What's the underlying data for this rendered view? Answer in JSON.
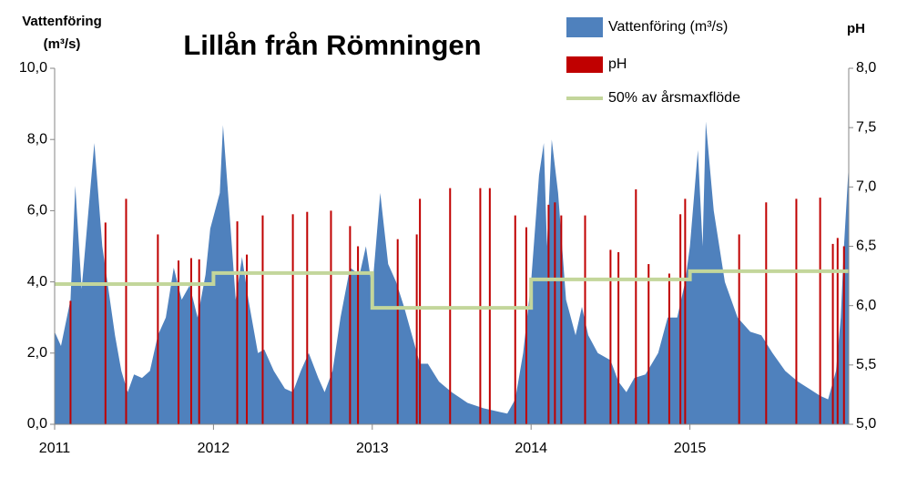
{
  "chart_data": {
    "type": "combo",
    "title": "Lillån från Römningen",
    "ylabel": [
      "Vattenföring",
      "(m³/s)"
    ],
    "y2label": "pH",
    "xlim": [
      2011,
      2016
    ],
    "xticks": [
      2011,
      2012,
      2013,
      2014,
      2015
    ],
    "ylim": [
      0,
      10
    ],
    "yticks": [
      {
        "value": 0,
        "label": "0,0"
      },
      {
        "value": 2,
        "label": "2,0"
      },
      {
        "value": 4,
        "label": "4,0"
      },
      {
        "value": 6,
        "label": "6,0"
      },
      {
        "value": 8,
        "label": "8,0"
      },
      {
        "value": 10,
        "label": "10,0"
      }
    ],
    "y2lim": [
      5,
      8
    ],
    "y2ticks": [
      {
        "value": 5,
        "label": "5,0"
      },
      {
        "value": 5.5,
        "label": "5,5"
      },
      {
        "value": 6,
        "label": "6,0"
      },
      {
        "value": 6.5,
        "label": "6,5"
      },
      {
        "value": 7,
        "label": "7,0"
      },
      {
        "value": 7.5,
        "label": "7,5"
      },
      {
        "value": 8,
        "label": "8,0"
      }
    ],
    "series": [
      {
        "name": "Vattenföring (m³/s)",
        "type": "area",
        "color": "#4f81bd",
        "x": [
          2011.0,
          2011.04,
          2011.1,
          2011.13,
          2011.17,
          2011.25,
          2011.3,
          2011.38,
          2011.42,
          2011.46,
          2011.5,
          2011.55,
          2011.6,
          2011.65,
          2011.7,
          2011.75,
          2011.8,
          2011.85,
          2011.9,
          2011.95,
          2011.98,
          2012.04,
          2012.06,
          2012.1,
          2012.14,
          2012.18,
          2012.22,
          2012.28,
          2012.32,
          2012.38,
          2012.45,
          2012.5,
          2012.55,
          2012.6,
          2012.66,
          2012.7,
          2012.75,
          2012.8,
          2012.86,
          2012.92,
          2012.96,
          2013.0,
          2013.05,
          2013.1,
          2013.15,
          2013.2,
          2013.25,
          2013.3,
          2013.35,
          2013.42,
          2013.5,
          2013.6,
          2013.7,
          2013.8,
          2013.85,
          2013.9,
          2013.95,
          2014.0,
          2014.05,
          2014.08,
          2014.1,
          2014.13,
          2014.17,
          2014.22,
          2014.28,
          2014.32,
          2014.36,
          2014.42,
          2014.5,
          2014.55,
          2014.6,
          2014.65,
          2014.72,
          2014.8,
          2014.86,
          2014.92,
          2014.97,
          2015.0,
          2015.05,
          2015.08,
          2015.1,
          2015.15,
          2015.22,
          2015.3,
          2015.38,
          2015.45,
          2015.52,
          2015.6,
          2015.68,
          2015.75,
          2015.82,
          2015.87,
          2015.92,
          2015.95,
          2015.97,
          2016.0
        ],
        "values": [
          2.6,
          2.2,
          3.5,
          6.7,
          3.8,
          7.9,
          5.0,
          2.5,
          1.5,
          0.9,
          1.4,
          1.3,
          1.5,
          2.5,
          3.0,
          4.4,
          3.5,
          3.9,
          3.0,
          4.2,
          5.5,
          6.5,
          8.4,
          6.0,
          3.5,
          4.7,
          3.5,
          2.0,
          2.1,
          1.5,
          1.0,
          0.9,
          1.5,
          2.0,
          1.3,
          0.9,
          1.5,
          3.0,
          4.4,
          4.2,
          5.0,
          3.8,
          6.5,
          4.5,
          4.0,
          3.3,
          2.5,
          1.7,
          1.7,
          1.2,
          0.9,
          0.6,
          0.45,
          0.35,
          0.3,
          0.7,
          2.0,
          4.0,
          7.0,
          7.9,
          5.0,
          8.0,
          6.5,
          3.5,
          2.5,
          3.3,
          2.5,
          2.0,
          1.8,
          1.2,
          0.9,
          1.3,
          1.4,
          2.0,
          3.0,
          3.0,
          4.0,
          5.0,
          7.7,
          5.0,
          8.5,
          6.0,
          4.0,
          3.0,
          2.6,
          2.5,
          2.0,
          1.5,
          1.2,
          1.0,
          0.8,
          0.7,
          1.5,
          3.0,
          5.0,
          7.3
        ]
      },
      {
        "name": "pH",
        "type": "bar",
        "axis": "y2",
        "color": "#c00000",
        "x": [
          2011.1,
          2011.32,
          2011.45,
          2011.65,
          2011.78,
          2011.86,
          2011.91,
          2012.15,
          2012.21,
          2012.31,
          2012.5,
          2012.59,
          2012.74,
          2012.86,
          2012.91,
          2013.16,
          2013.28,
          2013.3,
          2013.49,
          2013.68,
          2013.74,
          2013.9,
          2013.97,
          2014.11,
          2014.15,
          2014.19,
          2014.34,
          2014.5,
          2014.55,
          2014.66,
          2014.74,
          2014.87,
          2014.94,
          2014.97,
          2015.31,
          2015.48,
          2015.67,
          2015.82,
          2015.9,
          2015.93,
          2015.97
        ],
        "values": [
          6.04,
          6.7,
          6.9,
          6.6,
          6.38,
          6.4,
          6.39,
          6.71,
          6.43,
          6.76,
          6.77,
          6.79,
          6.8,
          6.67,
          6.5,
          6.56,
          6.6,
          6.9,
          6.99,
          6.99,
          6.99,
          6.76,
          6.66,
          6.85,
          6.87,
          6.76,
          6.76,
          6.47,
          6.45,
          6.98,
          6.35,
          6.27,
          6.77,
          6.9,
          6.6,
          6.87,
          6.9,
          6.91,
          6.52,
          6.57,
          6.5
        ]
      },
      {
        "name": "50% av årsmaxflöde",
        "type": "line",
        "color": "#c3d69b",
        "x": [
          2011,
          2012,
          2012,
          2013,
          2013,
          2014,
          2014,
          2015,
          2015,
          2016
        ],
        "values": [
          3.94,
          3.94,
          4.25,
          4.25,
          3.27,
          3.27,
          4.07,
          4.07,
          4.3,
          4.3
        ]
      }
    ]
  }
}
